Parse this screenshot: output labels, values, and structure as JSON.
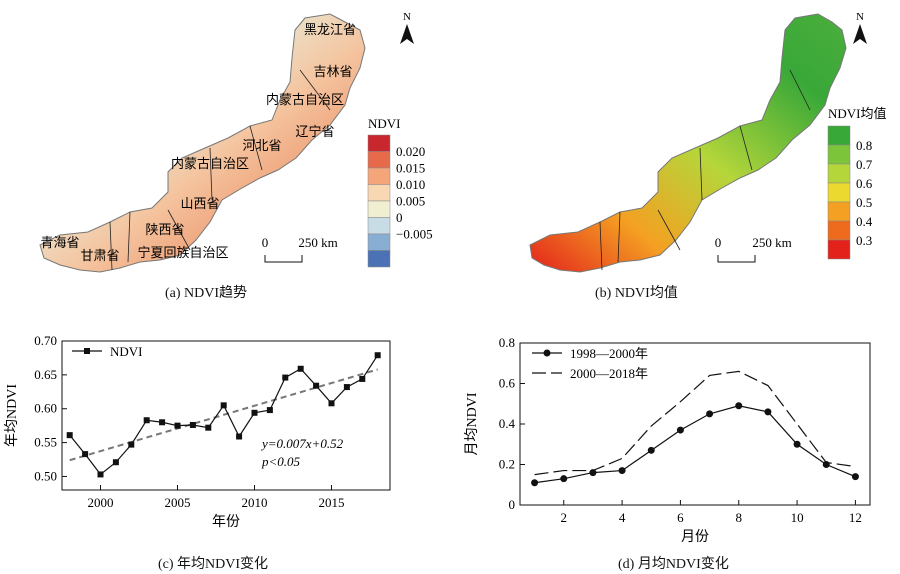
{
  "panels": {
    "a": {
      "caption": "(a) NDVI趋势",
      "legend_title": "NDVI",
      "legend_labels": [
        "0.020",
        "0.015",
        "0.010",
        "0.005",
        "0",
        "−0.005"
      ],
      "legend_colors": [
        "#c9272e",
        "#e76a4a",
        "#f4a57a",
        "#f8d7b3",
        "#f1efd2",
        "#c8dce6",
        "#89aed4",
        "#4a72b4"
      ],
      "scale_label": "0",
      "scale_unit": "250 km",
      "north": "N",
      "regions": [
        "黑龙江省",
        "吉林省",
        "内蒙古自治区",
        "辽宁省",
        "河北省",
        "内蒙古自治区",
        "山西省",
        "陕西省",
        "青海省",
        "甘肃省",
        "宁夏回族自治区"
      ]
    },
    "b": {
      "caption": "(b) NDVI均值",
      "legend_title": "NDVI均值",
      "legend_labels": [
        "0.8",
        "0.7",
        "0.6",
        "0.5",
        "0.4",
        "0.3"
      ],
      "legend_colors": [
        "#38a838",
        "#7cc43a",
        "#b5d63a",
        "#ecd930",
        "#f4a022",
        "#ee6a1c",
        "#e3221c"
      ],
      "scale_label": "0",
      "scale_unit": "250 km",
      "north": "N"
    },
    "c": {
      "caption": "(c) 年均NDVI变化"
    },
    "d": {
      "caption": "(d) 月均NDVI变化"
    }
  },
  "chart_data": [
    {
      "type": "line",
      "panel": "c",
      "xlabel": "年份",
      "ylabel": "年均NDVI",
      "xlim": [
        1997.5,
        2018.8
      ],
      "ylim": [
        0.48,
        0.7
      ],
      "xticks": [
        2000,
        2005,
        2010,
        2015
      ],
      "yticks": [
        0.5,
        0.55,
        0.6,
        0.65,
        0.7
      ],
      "ytick_labels": [
        "0.50",
        "0.55",
        "0.60",
        "0.65",
        "0.70"
      ],
      "series": [
        {
          "name": "NDVI",
          "marker": "square",
          "x": [
            1998,
            1999,
            2000,
            2001,
            2002,
            2003,
            2004,
            2005,
            2006,
            2007,
            2008,
            2009,
            2010,
            2011,
            2012,
            2013,
            2014,
            2015,
            2016,
            2017,
            2018
          ],
          "values": [
            0.561,
            0.533,
            0.503,
            0.521,
            0.547,
            0.583,
            0.58,
            0.575,
            0.576,
            0.572,
            0.605,
            0.559,
            0.594,
            0.598,
            0.646,
            0.659,
            0.634,
            0.608,
            0.632,
            0.644,
            0.679
          ]
        }
      ],
      "trend": {
        "x": [
          1998,
          2018
        ],
        "y": [
          0.524,
          0.658
        ]
      },
      "annotation_eq": "y=0.007x+0.52",
      "annotation_p": "p<0.05",
      "legend": "top-left"
    },
    {
      "type": "line",
      "panel": "d",
      "xlabel": "月份",
      "ylabel": "月均NDVI",
      "xlim": [
        0.5,
        12.5
      ],
      "ylim": [
        0,
        0.8
      ],
      "xticks": [
        2,
        4,
        6,
        8,
        10,
        12
      ],
      "yticks": [
        0,
        0.2,
        0.4,
        0.6,
        0.8
      ],
      "ytick_labels": [
        "0",
        "0.2",
        "0.4",
        "0.6",
        "0.8"
      ],
      "series": [
        {
          "name": "1998—2000年",
          "marker": "circle",
          "x": [
            1,
            2,
            3,
            4,
            5,
            6,
            7,
            8,
            9,
            10,
            11,
            12
          ],
          "values": [
            0.11,
            0.13,
            0.16,
            0.17,
            0.27,
            0.37,
            0.45,
            0.49,
            0.46,
            0.3,
            0.2,
            0.14
          ]
        },
        {
          "name": "2000—2018年",
          "marker": "none",
          "dash": true,
          "x": [
            1,
            2,
            3,
            4,
            5,
            6,
            7,
            8,
            9,
            10,
            11,
            12
          ],
          "values": [
            0.15,
            0.17,
            0.17,
            0.23,
            0.39,
            0.51,
            0.64,
            0.66,
            0.59,
            0.4,
            0.21,
            0.19
          ]
        }
      ],
      "legend": "top-left"
    }
  ]
}
